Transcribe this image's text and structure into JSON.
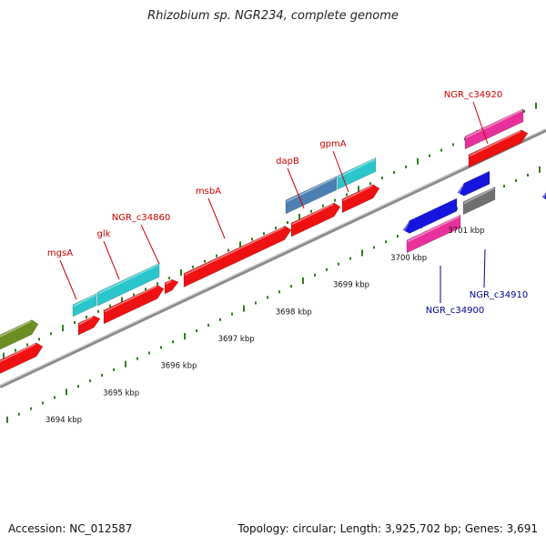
{
  "title": "Rhizobium sp. NGR234, complete genome",
  "footer": {
    "accession": "Accession: NC_012587",
    "summary": "Topology: circular; Length: 3,925,702 bp; Genes: 3,691"
  },
  "colors": {
    "backbone": "#8c8c8c",
    "tick": "#2e7d1e",
    "label_forward": "#cc0000",
    "label_reverse": "#00008b",
    "cds_red": "#ee1111",
    "cds_cyan": "#2bc6cc",
    "cds_steelblue": "#4b7fb3",
    "cds_olive": "#6b8e23",
    "cds_magenta": "#e8309b",
    "cds_blue": "#1515dd",
    "cds_gray": "#707070"
  },
  "axis": {
    "scale_labels": [
      {
        "label": "3694 kbp",
        "kbp": 3694
      },
      {
        "label": "3695 kbp",
        "kbp": 3695
      },
      {
        "label": "3696 kbp",
        "kbp": 3696
      },
      {
        "label": "3697 kbp",
        "kbp": 3697
      },
      {
        "label": "3698 kbp",
        "kbp": 3698
      },
      {
        "label": "3699 kbp",
        "kbp": 3699
      },
      {
        "label": "3700 kbp",
        "kbp": 3700
      },
      {
        "label": "3701 kbp",
        "kbp": 3701
      }
    ]
  },
  "gene_labels": [
    {
      "name": "mgsA",
      "strand": "forward"
    },
    {
      "name": "glk",
      "strand": "forward"
    },
    {
      "name": "NGR_c34860",
      "strand": "forward"
    },
    {
      "name": "msbA",
      "strand": "forward"
    },
    {
      "name": "dapB",
      "strand": "forward"
    },
    {
      "name": "gpmA",
      "strand": "forward"
    },
    {
      "name": "NGR_c34920",
      "strand": "forward"
    },
    {
      "name": "NGR_c34900",
      "strand": "reverse"
    },
    {
      "name": "NGR_c34910",
      "strand": "reverse"
    }
  ]
}
